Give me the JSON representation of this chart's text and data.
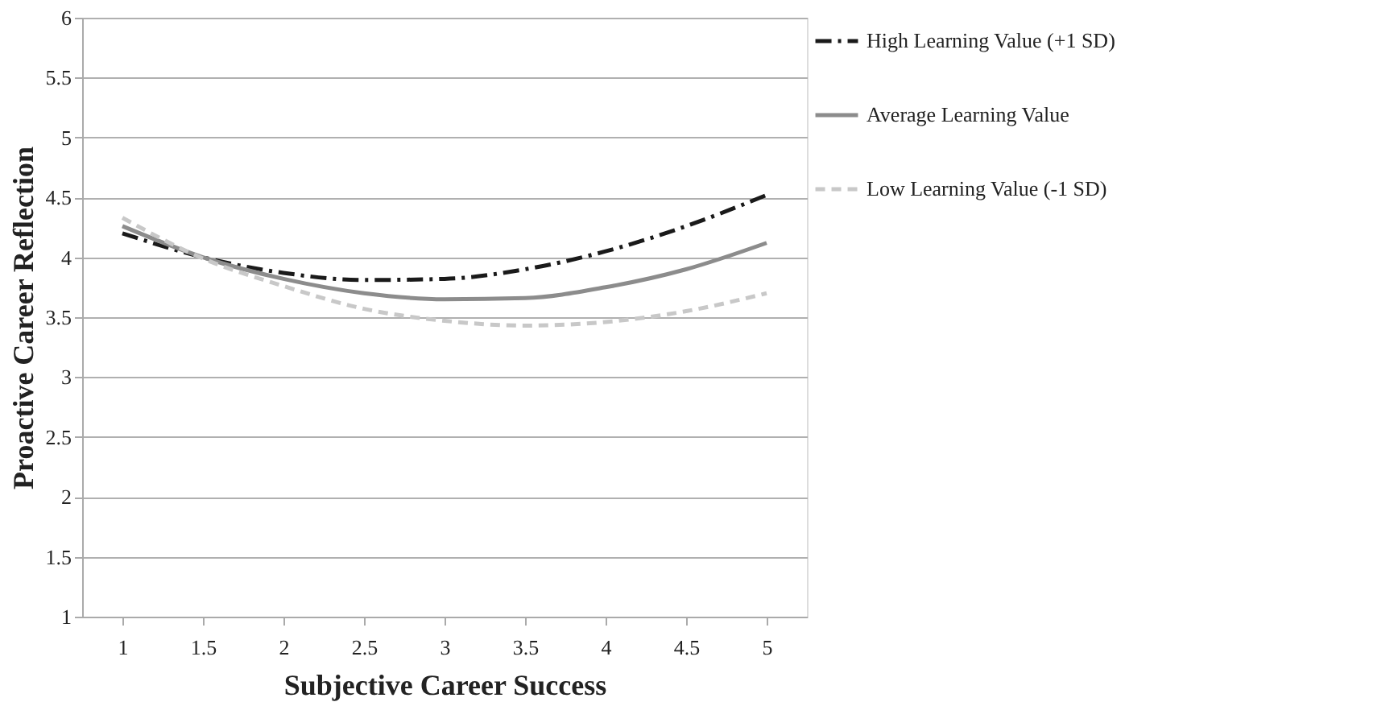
{
  "chart_data": {
    "type": "line",
    "xlabel": "Subjective Career Success",
    "ylabel": "Proactive Career Reflection",
    "categories": [
      "1",
      "1.5",
      "2",
      "2.5",
      "3",
      "3.5",
      "4",
      "4.5",
      "5"
    ],
    "series": [
      {
        "name": "High Learning Value (+1 SD)",
        "color": "#1a1a1a",
        "line_style": "dashdot",
        "values": [
          4.2,
          4.0,
          3.87,
          3.81,
          3.82,
          3.9,
          4.05,
          4.26,
          4.52
        ]
      },
      {
        "name": "Average Learning Value",
        "color": "#8c8c8c",
        "line_style": "solid",
        "values": [
          4.26,
          4.0,
          3.82,
          3.7,
          3.65,
          3.66,
          3.75,
          3.9,
          4.12
        ]
      },
      {
        "name": "Low Learning Value (-1 SD)",
        "color": "#c8c8c8",
        "line_style": "dashed",
        "values": [
          4.33,
          3.99,
          3.76,
          3.57,
          3.47,
          3.43,
          3.46,
          3.55,
          3.7
        ]
      }
    ],
    "ylim": [
      1,
      6
    ],
    "yticks": [
      1,
      1.5,
      2,
      2.5,
      3,
      3.5,
      4,
      4.5,
      5,
      5.5,
      6
    ],
    "grid": "y",
    "legend": "right",
    "marker": "none"
  }
}
